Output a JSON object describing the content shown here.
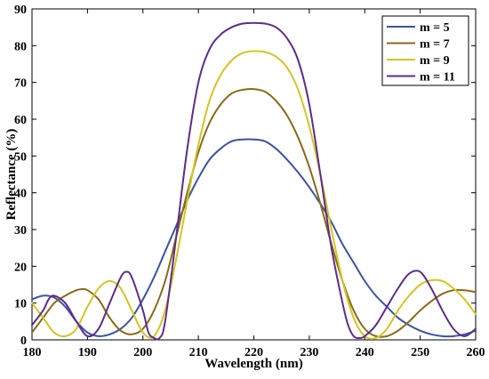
{
  "chart_data": {
    "type": "line",
    "xlabel": "Wavelength (nm)",
    "ylabel": "Reflectance (%)",
    "xlim": [
      180,
      260
    ],
    "ylim": [
      0,
      90
    ],
    "xticks": [
      180,
      190,
      200,
      210,
      220,
      230,
      240,
      250,
      260
    ],
    "yticks": [
      0,
      10,
      20,
      30,
      40,
      50,
      60,
      70,
      80,
      90
    ],
    "grid": false,
    "legend_position": "top-right",
    "series": [
      {
        "name": "m = 5",
        "color": "#3a53a4",
        "x": [
          180,
          182,
          184,
          186,
          188,
          190,
          192,
          194,
          196,
          198,
          200,
          202,
          204,
          206,
          208,
          210,
          212,
          214,
          216,
          218,
          220,
          222,
          224,
          226,
          228,
          230,
          232,
          234,
          236,
          238,
          240,
          242,
          244,
          246,
          248,
          250,
          252,
          254,
          256,
          258,
          260
        ],
        "y": [
          11,
          12,
          11.5,
          9,
          5,
          2,
          1,
          1.5,
          3,
          6,
          11,
          17,
          24,
          31,
          38,
          44,
          49,
          52,
          54,
          54.5,
          54.5,
          54,
          52,
          49,
          45.5,
          41.5,
          37,
          32,
          26,
          21,
          16,
          12,
          9,
          6,
          4,
          2.5,
          1.5,
          1,
          1,
          1.5,
          2.5
        ]
      },
      {
        "name": "m = 7",
        "color": "#8a6a16",
        "x": [
          180,
          182,
          184,
          186,
          188,
          189,
          190,
          192,
          194,
          196,
          198,
          200,
          202,
          204,
          206,
          208,
          210,
          212,
          214,
          216,
          218,
          220,
          222,
          224,
          226,
          228,
          230,
          232,
          234,
          236,
          238,
          240,
          242,
          244,
          246,
          248,
          250,
          252,
          254,
          256,
          258,
          260
        ],
        "y": [
          2,
          6,
          10,
          12,
          13.5,
          13.8,
          13.5,
          11,
          6,
          2.5,
          1.5,
          3,
          8,
          16,
          28,
          40,
          51,
          59,
          64,
          67,
          68,
          68.2,
          67.5,
          65,
          61,
          55,
          47,
          37,
          26,
          16,
          8,
          3,
          1,
          1,
          2.5,
          5,
          8,
          10.5,
          12.5,
          13.5,
          13.5,
          13
        ]
      },
      {
        "name": "m = 9",
        "color": "#d4c51e",
        "x": [
          180,
          182,
          184,
          186,
          188,
          190,
          192,
          194,
          196,
          198,
          200,
          202,
          204,
          206,
          208,
          210,
          212,
          214,
          216,
          218,
          220,
          222,
          224,
          226,
          228,
          230,
          232,
          234,
          236,
          238,
          240,
          242,
          244,
          246,
          248,
          250,
          252,
          254,
          256,
          258,
          260
        ],
        "y": [
          10,
          6,
          2,
          1,
          3,
          9,
          14,
          16,
          14,
          8,
          2,
          1,
          8,
          22,
          38,
          53,
          65,
          72,
          76,
          78,
          78.5,
          78.3,
          77,
          74,
          68,
          58,
          45,
          30,
          16,
          6,
          1,
          0.5,
          3,
          8,
          12,
          15,
          16.2,
          16,
          14,
          11,
          7
        ]
      },
      {
        "name": "m = 11",
        "color": "#5e2c8c",
        "x": [
          180,
          182,
          183,
          184,
          186,
          188,
          190,
          192,
          194,
          196,
          197,
          198,
          200,
          201,
          202,
          203,
          204,
          206,
          208,
          210,
          212,
          214,
          216,
          218,
          220,
          222,
          224,
          226,
          228,
          230,
          232,
          234,
          236,
          237,
          238,
          239,
          240,
          242,
          244,
          246,
          248,
          250,
          252,
          254,
          256,
          258,
          260
        ],
        "y": [
          4,
          8,
          11,
          12,
          10,
          5,
          1,
          3,
          10,
          17,
          18.5,
          17,
          8,
          2,
          0.5,
          0.5,
          5,
          28,
          52,
          70,
          79,
          83,
          85,
          86,
          86.2,
          86,
          85,
          82,
          76,
          64,
          45,
          25,
          10,
          4,
          1,
          0.5,
          1,
          4,
          9,
          14,
          18,
          18.5,
          14,
          8,
          3,
          1,
          3
        ]
      }
    ]
  }
}
